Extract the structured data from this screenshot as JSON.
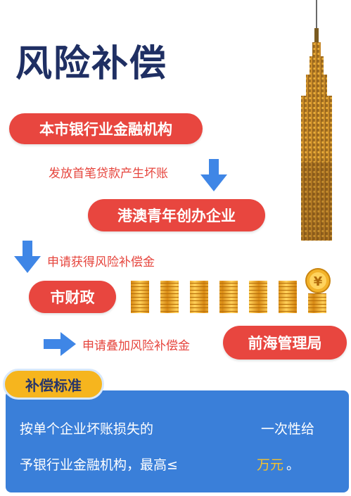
{
  "title": "风险补偿",
  "flow": {
    "bank": "本市银行业金融机构",
    "bank_note": "发放首笔贷款产生坏账",
    "hk_macau": "港澳青年创办企业",
    "hk_macau_note": "申请获得风险补偿金",
    "finance": "市财政",
    "qianhai_note": "申请叠加风险补偿金",
    "qianhai": "前海管理局"
  },
  "standard": {
    "badge": "补偿标准",
    "line1_left": "按单个企业坏账损失的",
    "line1_right": "一次性给",
    "line2_left": "予银行业金融机构，最高≤",
    "line2_amount": "万元",
    "line2_end": "。"
  },
  "colors": {
    "pill": "#e8463f",
    "title": "#1f2f63",
    "arrow": "#3f86e6",
    "panel": "#3a7fd9",
    "badge": "#f6b51e"
  },
  "icons": [
    "arrow-down-icon",
    "arrow-right-icon",
    "tower-illustration",
    "coin-stack-icon",
    "yen-coin-icon"
  ]
}
